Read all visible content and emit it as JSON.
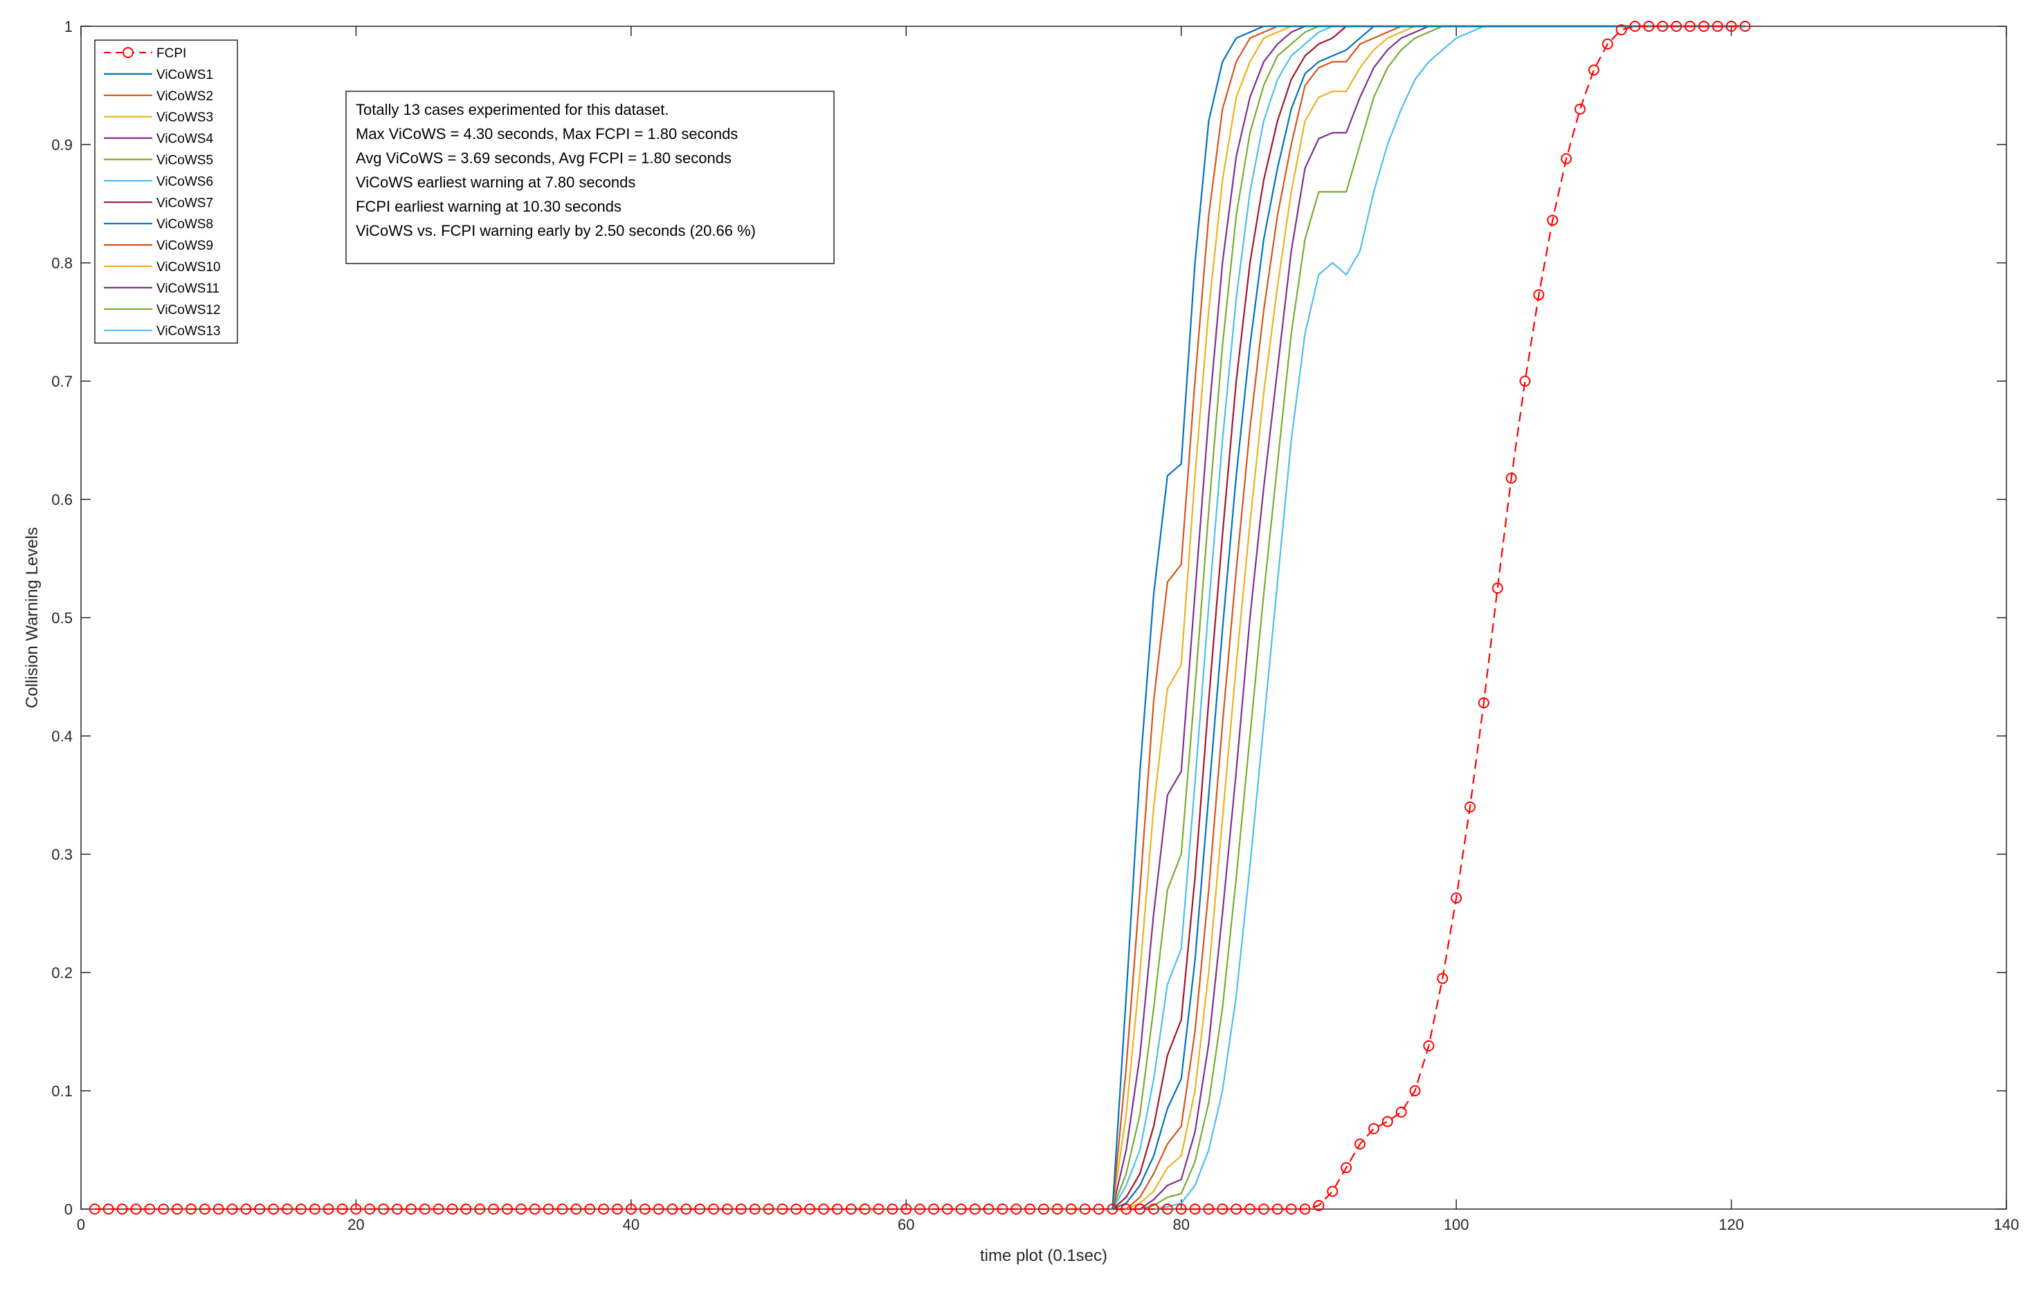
{
  "chart_data": {
    "type": "line",
    "title": "",
    "xlabel": "time plot (0.1sec)",
    "ylabel": "Collision Warning Levels",
    "xlim": [
      0,
      140
    ],
    "ylim": [
      0,
      1
    ],
    "xticks": [
      0,
      20,
      40,
      60,
      80,
      100,
      120,
      140
    ],
    "yticks": [
      0,
      0.1,
      0.2,
      0.3,
      0.4,
      0.5,
      0.6,
      0.7,
      0.8,
      0.9,
      1
    ],
    "grid": false,
    "legend_position": "top-left",
    "legend": [
      "FCPI",
      "ViCoWS1",
      "ViCoWS2",
      "ViCoWS3",
      "ViCoWS4",
      "ViCoWS5",
      "ViCoWS6",
      "ViCoWS7",
      "ViCoWS8",
      "ViCoWS9",
      "ViCoWS10",
      "ViCoWS11",
      "ViCoWS12",
      "ViCoWS13"
    ],
    "annotation": [
      "Totally 13 cases experimented for this dataset.",
      "Max ViCoWS = 4.30 seconds, Max FCPI = 1.80 seconds",
      "Avg ViCoWS = 3.69 seconds, Avg FCPI = 1.80 seconds",
      "ViCoWS earliest warning at 7.80 seconds",
      "FCPI earliest warning at 10.30 seconds",
      "ViCoWS vs. FCPI warning early by 2.50 seconds (20.66 %)"
    ],
    "fcpi": {
      "name": "FCPI",
      "color": "#ff0000",
      "style": "dashed-circle",
      "x": [
        90,
        91,
        92,
        93,
        94,
        95,
        96,
        97,
        98,
        99,
        100,
        101,
        102,
        103,
        104,
        105,
        106,
        107,
        108,
        109,
        110,
        111,
        112,
        113,
        114,
        115,
        116,
        117,
        118,
        119,
        120,
        121
      ],
      "y": [
        0.003,
        0.015,
        0.035,
        0.055,
        0.068,
        0.074,
        0.082,
        0.1,
        0.138,
        0.195,
        0.263,
        0.34,
        0.428,
        0.525,
        0.618,
        0.7,
        0.773,
        0.836,
        0.888,
        0.93,
        0.963,
        0.985,
        0.997,
        1,
        1,
        1,
        1,
        1,
        1,
        1,
        1,
        1
      ],
      "zero_from": 1,
      "end": 121
    },
    "series": [
      {
        "name": "ViCoWS1",
        "color": "#0072BD",
        "x": [
          75,
          76,
          77,
          78,
          79,
          80,
          81,
          82,
          83,
          84,
          85,
          86,
          87
        ],
        "y": [
          0,
          0.18,
          0.37,
          0.52,
          0.62,
          0.63,
          0.8,
          0.92,
          0.97,
          0.99,
          0.995,
          1,
          1
        ]
      },
      {
        "name": "ViCoWS2",
        "color": "#D95319",
        "x": [
          75,
          76,
          77,
          78,
          79,
          80,
          81,
          82,
          83,
          84,
          85,
          86,
          87,
          88
        ],
        "y": [
          0,
          0.12,
          0.27,
          0.43,
          0.53,
          0.545,
          0.7,
          0.84,
          0.93,
          0.97,
          0.99,
          0.995,
          1,
          1
        ]
      },
      {
        "name": "ViCoWS3",
        "color": "#EDB120",
        "x": [
          75,
          76,
          77,
          78,
          79,
          80,
          81,
          82,
          83,
          84,
          85,
          86,
          87,
          88,
          89
        ],
        "y": [
          0,
          0.08,
          0.2,
          0.34,
          0.44,
          0.46,
          0.62,
          0.76,
          0.87,
          0.94,
          0.97,
          0.99,
          0.995,
          1,
          1
        ]
      },
      {
        "name": "ViCoWS4",
        "color": "#7E2F8E",
        "x": [
          75,
          76,
          77,
          78,
          79,
          80,
          81,
          82,
          83,
          84,
          85,
          86,
          87,
          88,
          89,
          90
        ],
        "y": [
          0,
          0.05,
          0.13,
          0.25,
          0.35,
          0.37,
          0.52,
          0.67,
          0.8,
          0.89,
          0.94,
          0.97,
          0.985,
          0.995,
          1,
          1
        ]
      },
      {
        "name": "ViCoWS5",
        "color": "#77AC30",
        "x": [
          75,
          76,
          77,
          78,
          79,
          80,
          81,
          82,
          83,
          84,
          85,
          86,
          87,
          88,
          89,
          90,
          91
        ],
        "y": [
          0,
          0.03,
          0.08,
          0.17,
          0.27,
          0.3,
          0.44,
          0.59,
          0.73,
          0.84,
          0.91,
          0.95,
          0.975,
          0.985,
          0.995,
          1,
          1
        ]
      },
      {
        "name": "ViCoWS6",
        "color": "#4DBEEE",
        "x": [
          75,
          76,
          77,
          78,
          79,
          80,
          81,
          82,
          83,
          84,
          85,
          86,
          87,
          88,
          89,
          90,
          91,
          92
        ],
        "y": [
          0,
          0.02,
          0.05,
          0.11,
          0.19,
          0.22,
          0.36,
          0.51,
          0.65,
          0.77,
          0.86,
          0.92,
          0.955,
          0.975,
          0.985,
          0.995,
          1,
          1
        ]
      },
      {
        "name": "ViCoWS7",
        "color": "#A2142F",
        "x": [
          75,
          76,
          77,
          78,
          79,
          80,
          81,
          82,
          83,
          84,
          85,
          86,
          87,
          88,
          89,
          90,
          91,
          92,
          93
        ],
        "y": [
          0,
          0.01,
          0.03,
          0.07,
          0.13,
          0.16,
          0.28,
          0.43,
          0.57,
          0.7,
          0.8,
          0.87,
          0.92,
          0.955,
          0.975,
          0.985,
          0.99,
          1,
          1
        ]
      },
      {
        "name": "ViCoWS8",
        "color": "#0072BD",
        "x": [
          75,
          76,
          77,
          78,
          79,
          80,
          81,
          82,
          83,
          84,
          85,
          86,
          87,
          88,
          89,
          90,
          91,
          92,
          93,
          94
        ],
        "y": [
          0,
          0.005,
          0.02,
          0.045,
          0.085,
          0.11,
          0.21,
          0.35,
          0.49,
          0.62,
          0.73,
          0.82,
          0.88,
          0.93,
          0.96,
          0.97,
          0.975,
          0.98,
          0.99,
          1
        ]
      },
      {
        "name": "ViCoWS9",
        "color": "#D95319",
        "x": [
          75,
          76,
          77,
          78,
          79,
          80,
          81,
          82,
          83,
          84,
          85,
          86,
          87,
          88,
          89,
          90,
          91,
          92,
          93,
          94,
          95,
          96
        ],
        "y": [
          0,
          0,
          0.01,
          0.03,
          0.055,
          0.07,
          0.15,
          0.27,
          0.41,
          0.54,
          0.66,
          0.76,
          0.84,
          0.9,
          0.95,
          0.965,
          0.97,
          0.97,
          0.985,
          0.99,
          0.995,
          1
        ]
      },
      {
        "name": "ViCoWS10",
        "color": "#EDB120",
        "x": [
          75,
          76,
          77,
          78,
          79,
          80,
          81,
          82,
          83,
          84,
          85,
          86,
          87,
          88,
          89,
          90,
          91,
          92,
          93,
          94,
          95,
          96,
          97
        ],
        "y": [
          0,
          0,
          0.005,
          0.015,
          0.035,
          0.045,
          0.1,
          0.2,
          0.33,
          0.46,
          0.58,
          0.69,
          0.78,
          0.86,
          0.92,
          0.94,
          0.945,
          0.945,
          0.965,
          0.98,
          0.99,
          0.995,
          1
        ]
      },
      {
        "name": "ViCoWS11",
        "color": "#7E2F8E",
        "x": [
          75,
          76,
          77,
          78,
          79,
          80,
          81,
          82,
          83,
          84,
          85,
          86,
          87,
          88,
          89,
          90,
          91,
          92,
          93,
          94,
          95,
          96,
          97,
          98
        ],
        "y": [
          0,
          0,
          0,
          0.008,
          0.02,
          0.025,
          0.065,
          0.14,
          0.25,
          0.37,
          0.5,
          0.61,
          0.71,
          0.81,
          0.88,
          0.905,
          0.91,
          0.91,
          0.94,
          0.965,
          0.98,
          0.99,
          0.995,
          1
        ]
      },
      {
        "name": "ViCoWS12",
        "color": "#77AC30",
        "x": [
          75,
          76,
          77,
          78,
          79,
          80,
          81,
          82,
          83,
          84,
          85,
          86,
          87,
          88,
          89,
          90,
          91,
          92,
          93,
          94,
          95,
          96,
          97,
          98,
          99,
          100
        ],
        "y": [
          0,
          0,
          0,
          0.003,
          0.01,
          0.013,
          0.04,
          0.09,
          0.17,
          0.28,
          0.4,
          0.52,
          0.63,
          0.74,
          0.82,
          0.86,
          0.86,
          0.86,
          0.9,
          0.94,
          0.965,
          0.98,
          0.99,
          0.995,
          1,
          1
        ]
      },
      {
        "name": "ViCoWS13",
        "color": "#4DBEEE",
        "x": [
          75,
          76,
          77,
          78,
          79,
          80,
          81,
          82,
          83,
          84,
          85,
          86,
          87,
          88,
          89,
          90,
          91,
          92,
          93,
          94,
          95,
          96,
          97,
          98,
          99,
          100,
          101,
          102,
          103,
          104,
          105
        ],
        "y": [
          0,
          0,
          0,
          0,
          0.002,
          0.005,
          0.02,
          0.05,
          0.1,
          0.18,
          0.29,
          0.41,
          0.53,
          0.65,
          0.74,
          0.79,
          0.8,
          0.79,
          0.81,
          0.86,
          0.9,
          0.93,
          0.955,
          0.97,
          0.98,
          0.99,
          0.995,
          1,
          1,
          1,
          1
        ]
      }
    ]
  }
}
